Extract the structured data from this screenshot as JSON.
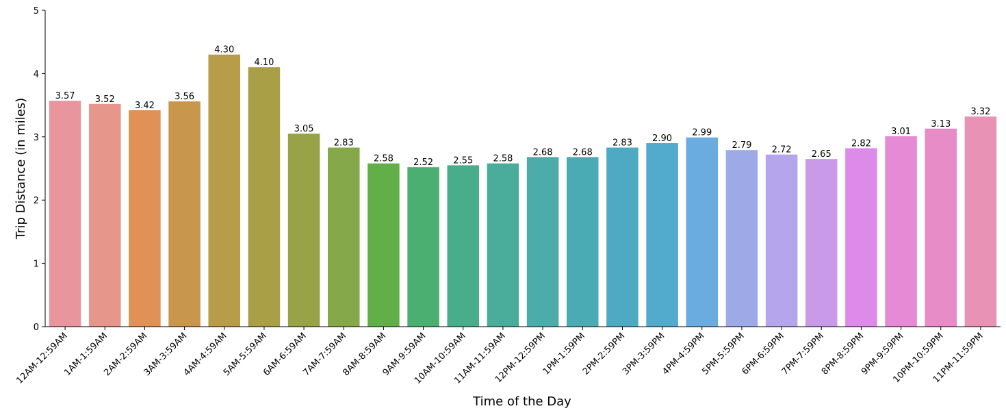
{
  "chart_data": {
    "type": "bar",
    "xlabel": "Time of the Day",
    "ylabel": "Trip Distance (in miles)",
    "ylim": [
      0,
      5
    ],
    "yticks": [
      0,
      1,
      2,
      3,
      4,
      5
    ],
    "categories": [
      "12AM-12:59AM",
      "1AM-1:59AM",
      "2AM-2:59AM",
      "3AM-3:59AM",
      "4AM-4:59AM",
      "5AM-5:59AM",
      "6AM-6:59AM",
      "7AM-7:59AM",
      "8AM-8:59AM",
      "9AM-9:59AM",
      "10AM-10:59AM",
      "11AM-11:59AM",
      "12PM-12:59PM",
      "1PM-1:59PM",
      "2PM-2:59PM",
      "3PM-3:59PM",
      "4PM-4:59PM",
      "5PM-5:59PM",
      "6PM-6:59PM",
      "7PM-7:59PM",
      "8PM-8:59PM",
      "9PM-9:59PM",
      "10PM-10:59PM",
      "11PM-11:59PM"
    ],
    "values": [
      3.57,
      3.52,
      3.42,
      3.56,
      4.3,
      4.1,
      3.05,
      2.83,
      2.58,
      2.52,
      2.55,
      2.58,
      2.68,
      2.68,
      2.83,
      2.9,
      2.99,
      2.79,
      2.72,
      2.65,
      2.82,
      3.01,
      3.13,
      3.32
    ],
    "value_labels": [
      "3.57",
      "3.52",
      "3.42",
      "3.56",
      "4.30",
      "4.10",
      "3.05",
      "2.83",
      "2.58",
      "2.52",
      "2.55",
      "2.58",
      "2.68",
      "2.68",
      "2.83",
      "2.90",
      "2.99",
      "2.79",
      "2.72",
      "2.65",
      "2.82",
      "3.01",
      "3.13",
      "3.32"
    ],
    "colors": [
      "#e8959e",
      "#e6968a",
      "#e09256",
      "#c9974c",
      "#b89c49",
      "#a99f46",
      "#97a346",
      "#84a84a",
      "#62ae48",
      "#4caf72",
      "#49ad8c",
      "#4aad9c",
      "#4bacaa",
      "#4babb4",
      "#4eaac2",
      "#52aacd",
      "#6aacdf",
      "#9daae7",
      "#b5a5ec",
      "#c99ae8",
      "#dd8aea",
      "#e68ad6",
      "#e78cc7",
      "#e892b5"
    ],
    "grid": false,
    "legend": false
  }
}
